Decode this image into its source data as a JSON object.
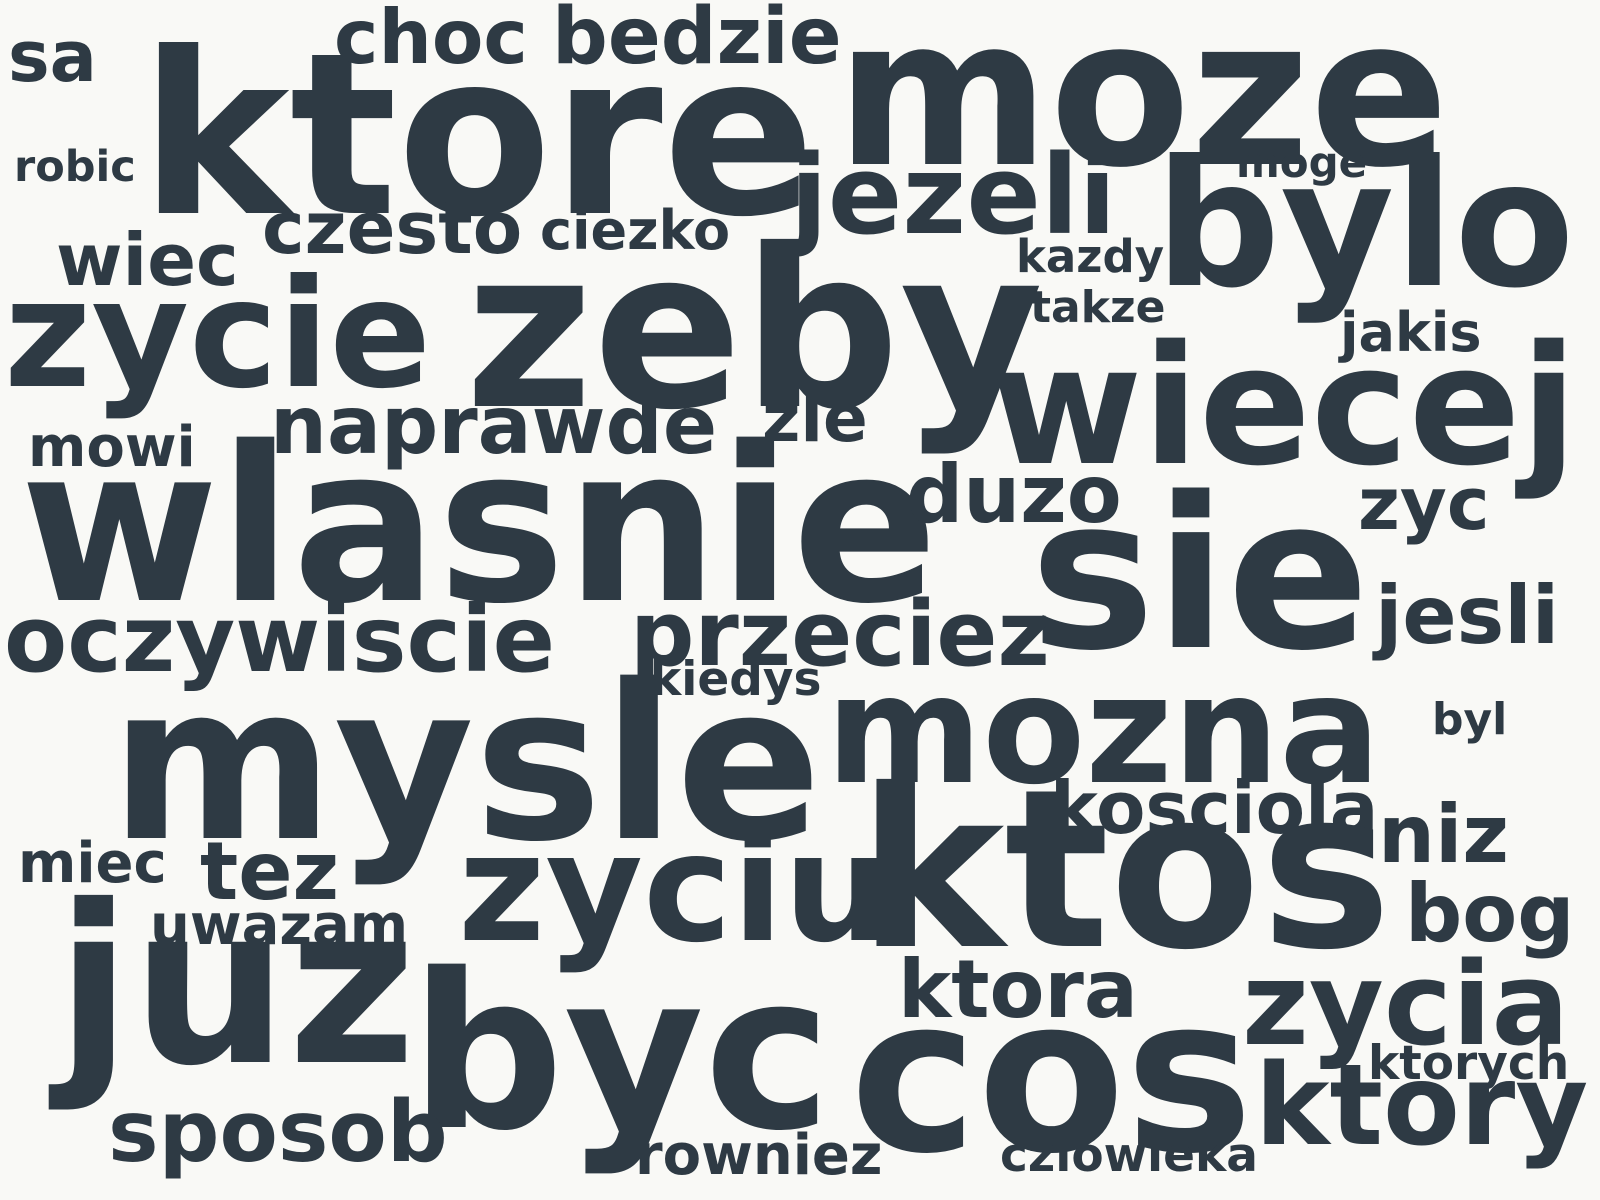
{
  "background_color": "#f9f9f6",
  "word_color": "#2e3a44",
  "words": [
    "moze",
    "ktore",
    "choc",
    "bedzie",
    "sa",
    "robic",
    "jezeli",
    "moge",
    "bylo",
    "czesto",
    "ciezko",
    "wiec",
    "zeby",
    "zycie",
    "kazdy",
    "takze",
    "jakis",
    "wiecej",
    "naprawde",
    "zle",
    "mowi",
    "wlasnie",
    "duzo",
    "zyc",
    "sie",
    "oczywiscie",
    "przeciez",
    "jesli",
    "kiedys",
    "mozna",
    "mysle",
    "byl",
    "kosciola",
    "niz",
    "miec",
    "tez",
    "zyciu",
    "ktos",
    "uwazam",
    "bog",
    "juz",
    "ktora",
    "zycia",
    "byc",
    "cos",
    "ktorych",
    "ktory",
    "sposob",
    "rowniez",
    "czlowieka"
  ]
}
